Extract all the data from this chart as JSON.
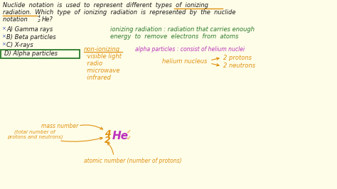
{
  "bg_color": "#fefde8",
  "black": "#1a1a1a",
  "orange": "#e09010",
  "green": "#2a7a2a",
  "magenta": "#bb33bb",
  "blue": "#4455bb",
  "dark_green": "#2a7a2a",
  "title_line1": "Nuclide  notation  is  used  to  represent  different  types  of  ionizing",
  "title_line2": "radiation.  Which  type  of  ionizing  radiation  is  represented  by  the  nuclide",
  "title_line3": "notation  ",
  "title_line3_post": "He?",
  "ans_a": "A) Gamma rays",
  "ans_b": "B) Beta particles",
  "ans_c": "C) X-rays",
  "ans_d": "D) Alpha particles",
  "def_line1": "ionizing radiation : radiation that carries enough",
  "def_line2": "energy  to  remove  electrons  from  atoms",
  "nonion_label": "non-ionizing",
  "nonion_items": [
    "·visible light",
    "·radio",
    "·microwave",
    "·infrared"
  ],
  "alpha_line": "alpha particles : consist of helium nuclei",
  "helium_line": "helium nucleus",
  "protons_line": "2 protons",
  "neutrons_line": "2 neutrons",
  "mass_label": "mass number",
  "mass_sub": "(total number of\nprotons and neutrons)",
  "atomic_label": "atomic number (number of protons)"
}
